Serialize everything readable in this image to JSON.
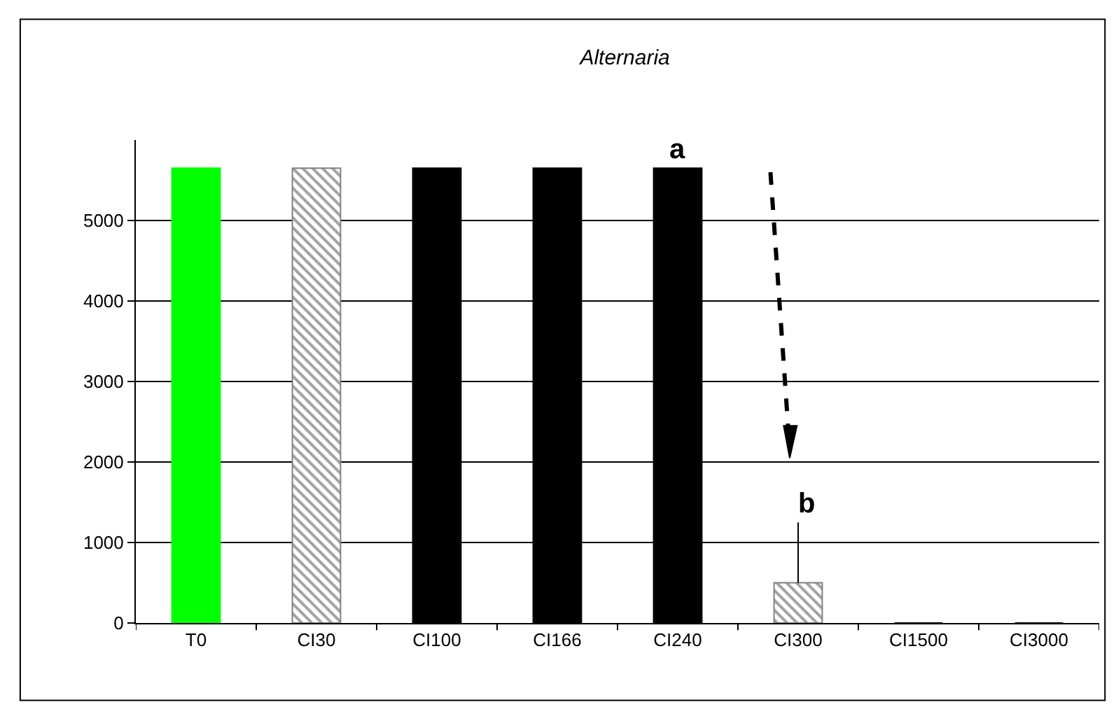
{
  "chart_data": {
    "type": "bar",
    "title": "Alternaria",
    "categories": [
      "T0",
      "CI30",
      "CI100",
      "CI166",
      "CI240",
      "CI300",
      "CI1500",
      "CI3000"
    ],
    "values": [
      5650,
      5650,
      5650,
      5650,
      5650,
      500,
      0,
      0
    ],
    "colors": [
      "#00ff00",
      "#808080",
      "#000000",
      "#000000",
      "#000000",
      "#808080",
      "#000000",
      "#000000"
    ],
    "errors": [
      null,
      null,
      null,
      null,
      null,
      [
        500,
        1250
      ],
      null,
      null
    ],
    "annotations": [
      {
        "text": "a",
        "x": "CI240",
        "y": 5650
      },
      {
        "text": "b",
        "x": "CI300",
        "y": 1250
      }
    ],
    "ylim": [
      0,
      6000
    ],
    "yticks": [
      0,
      1000,
      2000,
      3000,
      4000,
      5000
    ],
    "grid": "y",
    "legend": false
  }
}
